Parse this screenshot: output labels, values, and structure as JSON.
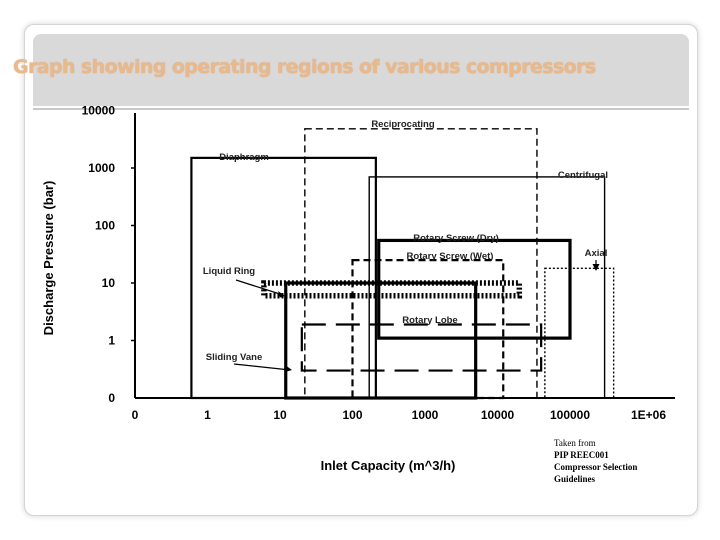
{
  "slide": {
    "title": "Graph showing operating regions of various compressors",
    "source": [
      "Taken from",
      "PIP REEC001",
      "Compressor Selection",
      "Guidelines"
    ]
  },
  "colors": {
    "title": "#e8b98d",
    "ink": "#000000",
    "title_band": "#d9d9d9"
  },
  "chart_data": {
    "type": "region",
    "xlabel": "Inlet Capacity (m^3/h)",
    "ylabel": "Discharge Pressure (bar)",
    "xscale": "log",
    "yscale": "log",
    "xticks": [
      "0",
      "1",
      "10",
      "100",
      "1000",
      "10000",
      "100000",
      "1E+06"
    ],
    "yticks": [
      "0",
      "1",
      "10",
      "100",
      "1000",
      "10000"
    ],
    "xlim": [
      "0",
      "1E+06"
    ],
    "ylim": [
      "0",
      "10000"
    ],
    "regions": [
      {
        "name": "Diaphragm",
        "x": [
          0.6,
          210
        ],
        "y": [
          0,
          1500
        ],
        "style": "solid",
        "weight": "medium"
      },
      {
        "name": "Reciprocating",
        "x": [
          22,
          35000
        ],
        "y": [
          0,
          4800
        ],
        "style": "dashed",
        "weight": "thin"
      },
      {
        "name": "Centrifugal",
        "x": [
          170,
          300000
        ],
        "y": [
          0,
          700
        ],
        "style": "solid",
        "weight": "thin"
      },
      {
        "name": "Rotary Screw (Dry)",
        "x": [
          230,
          100000
        ],
        "y": [
          1.1,
          55
        ],
        "style": "solid",
        "weight": "thick"
      },
      {
        "name": "Rotary Screw (Wet)",
        "x": [
          100,
          12000
        ],
        "y": [
          0,
          25
        ],
        "style": "dashed",
        "weight": "medium"
      },
      {
        "name": "Axial",
        "x": [
          45000,
          400000
        ],
        "y": [
          0,
          18
        ],
        "style": "dotted",
        "weight": "thin"
      },
      {
        "name": "Liquid Ring",
        "x": [
          6,
          20000
        ],
        "y": [
          6,
          10
        ],
        "style": "dotted",
        "weight": "heavy"
      },
      {
        "name": "Rotary Lobe",
        "x": [
          20,
          40000
        ],
        "y": [
          0.3,
          1.9
        ],
        "style": "longdash",
        "weight": "medium"
      },
      {
        "name": "Sliding Vane",
        "x": [
          12,
          5000
        ],
        "y": [
          0,
          10
        ],
        "style": "solid",
        "weight": "thick"
      }
    ]
  }
}
